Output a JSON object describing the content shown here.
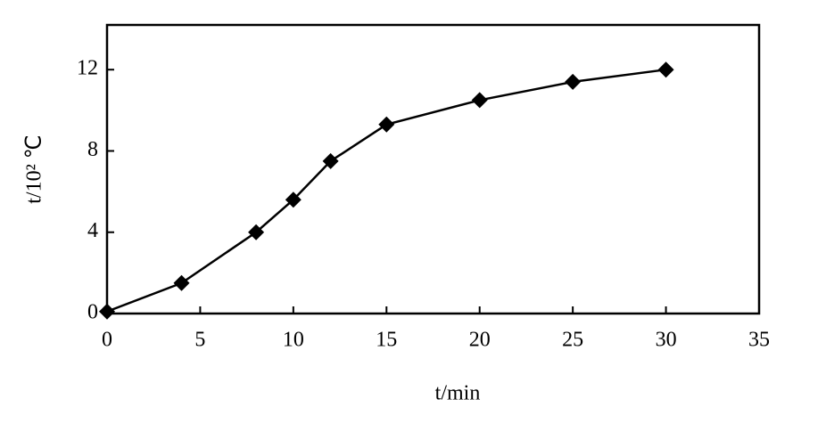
{
  "chart_data": {
    "type": "line",
    "x_label": "t/min",
    "y_label": "t/10² ℃",
    "x": [
      0,
      4,
      8,
      10,
      12,
      15,
      20,
      25,
      30
    ],
    "series": [
      {
        "color": "#000000",
        "values": [
          0.1,
          1.5,
          4.0,
          5.6,
          7.5,
          9.3,
          10.5,
          11.4,
          12.0
        ]
      }
    ],
    "xlim": [
      0,
      35
    ],
    "xticks": [
      0,
      5,
      10,
      15,
      20,
      25,
      30,
      35
    ],
    "ylim": [
      0,
      14.2
    ],
    "yticks": [
      0,
      4,
      8,
      12
    ]
  }
}
